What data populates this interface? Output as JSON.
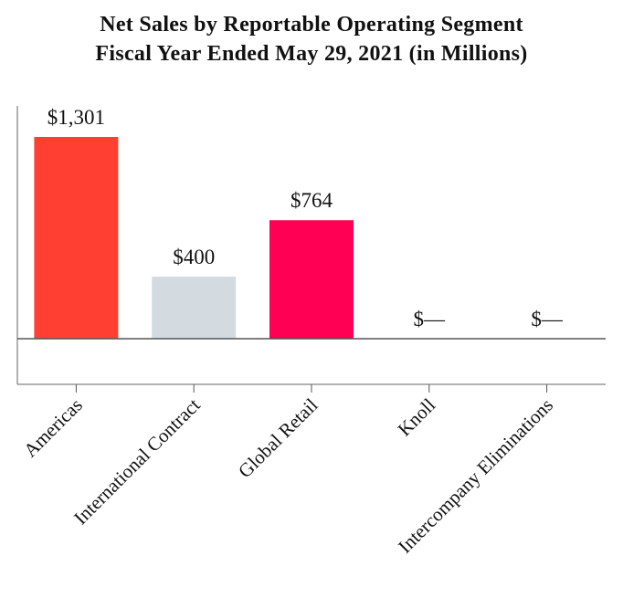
{
  "chart_data": {
    "type": "bar",
    "title_line1": "Net Sales by Reportable Operating Segment",
    "title_line2": "Fiscal Year Ended May 29, 2021 (in Millions)",
    "categories": [
      "Americas",
      "International Contract",
      "Global Retail",
      "Knoll",
      "Intercompany Eliminations"
    ],
    "values": [
      1301,
      400,
      764,
      0,
      0
    ],
    "data_labels": [
      "$1,301",
      "$400",
      "$764",
      "$—",
      "$—"
    ],
    "colors": [
      "#ff3f31",
      "#d3dbe1",
      "#ff0055",
      "#ff3f31",
      "#ff3f31"
    ],
    "ylim": [
      -300,
      1301
    ],
    "grid": false,
    "xlabel": "",
    "ylabel": ""
  }
}
